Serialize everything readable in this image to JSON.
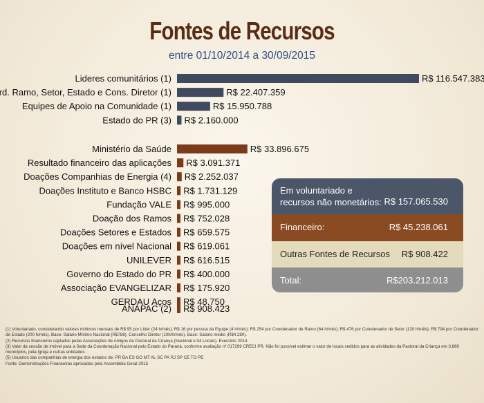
{
  "header": {
    "title": "Fontes de Recursos",
    "subtitle": "entre 01/10/2014 a 30/09/2015"
  },
  "colors": {
    "group1": "#3f4a5e",
    "group2": "#7b3a1a",
    "small": "#56627a",
    "title": "#5a2c14",
    "subtitle": "#2c4f86"
  },
  "chart_data": {
    "type": "bar",
    "orientation": "horizontal",
    "title": "Fontes de Recursos",
    "subtitle": "entre 01/10/2014 a 30/09/2015",
    "xlim": [
      0,
      116547383
    ],
    "grid": false,
    "groups": [
      {
        "color": "#3f4a5e",
        "bars": [
          {
            "label": "Lideres comunitários   (1)",
            "value": 116547383,
            "value_label": "R$ 116.547.383"
          },
          {
            "label": "Coord. Ramo, Setor, Estado e Cons. Diretor (1)",
            "value": 22407359,
            "value_label": "R$ 22.407.359"
          },
          {
            "label": "Equipes de Apoio na Comunidade (1)",
            "value": 15950788,
            "value_label": "R$ 15.950.788"
          },
          {
            "label": "Estado do PR (3)",
            "value": 2160000,
            "value_label": "R$ 2.160.000"
          }
        ]
      },
      {
        "color": "#7b3a1a",
        "bars": [
          {
            "label": "Ministério da Saúde",
            "value": 33896675,
            "value_label": "R$ 33.896.675"
          },
          {
            "label": "Resultado financeiro das aplicações",
            "value": 3091371,
            "value_label": "R$ 3.091.371"
          },
          {
            "label": "Doações Companhias de Energia (4)",
            "value": 2252037,
            "value_label": "R$ 2.252.037"
          },
          {
            "label": "Doações Instituto e Banco HSBC",
            "value": 1731129,
            "value_label": "R$ 1.731.129"
          },
          {
            "label": "Fundação VALE",
            "value": 995000,
            "value_label": "R$ 995.000"
          },
          {
            "label": "Doação dos Ramos",
            "value": 752028,
            "value_label": "R$ 752.028"
          },
          {
            "label": "Doações Setores e Estados",
            "value": 659575,
            "value_label": "R$ 659.575"
          },
          {
            "label": "Doações em nível Nacional",
            "value": 619061,
            "value_label": "R$ 619.061"
          },
          {
            "label": "UNILEVER",
            "value": 616515,
            "value_label": "R$ 616.515"
          },
          {
            "label": "Governo do Estado do PR",
            "value": 400000,
            "value_label": "R$ 400.000"
          },
          {
            "label": "Associação EVANGELIZAR",
            "value": 175920,
            "value_label": "R$ 175.920"
          },
          {
            "label": "GERDAU Aços",
            "value": 48750,
            "value_label": "R$ 48.750"
          }
        ]
      },
      {
        "color": "#7b3a1a",
        "bars": [
          {
            "label": "ANAPAC (2)",
            "value": 908423,
            "value_label": "R$ 908.423"
          }
        ]
      }
    ]
  },
  "summary": {
    "voluntariado": {
      "label": "Em voluntariado e recursos não monetários:",
      "value": "R$  157.065.530"
    },
    "financeiro": {
      "label": "Financeiro:",
      "value": "R$  45.238.061"
    },
    "outras": {
      "label": "Outras Fontes de Recursos",
      "value": "R$ 908.422"
    },
    "total": {
      "label": "Total:",
      "value": "R$203.212.013"
    }
  },
  "footnotes": [
    "(1) Voluntariado, considerando valores mínimos mensais de R$ 95 por Líder (24 h/mês); R$ 16 por pessoa da Equipe (4 h/mês); R$ 254 por Coordenador de Ramo (64 h/mês); R$ 476 por Coordenador de Setor (120 h/mês); R$ 794 por Coordenador de Estado (200 h/mês). Base: Salário Mínimo Nacional (R$788), Conselho Diretor (10h/h/mês). Base: Salário médio (R$4.280).",
    "(2) Recursos financeiros captados pelas Associações de Amigos da Pastoral da Criança (Nacional e 04 Locais). Exercício 2014.",
    "(3) Valor da cessão de imóvel para a Sede da Coordenação Nacional pelo Estado do Paraná, conforme avaliação nº 017299 CRECI PR. Não foi possível estimar o valor de locais cedidos para as atividades da Pastoral da Criança em 3.860 municípios, pela Igreja e outras entidades .",
    "(5) Usuarios das companhias de energia dos estados de: PR BA ES GO MT AL SC PA RJ SP CE TO PE",
    "Fonte: Demonstrações Financeiras aprovadas pela Assembléia Geral 2015"
  ]
}
